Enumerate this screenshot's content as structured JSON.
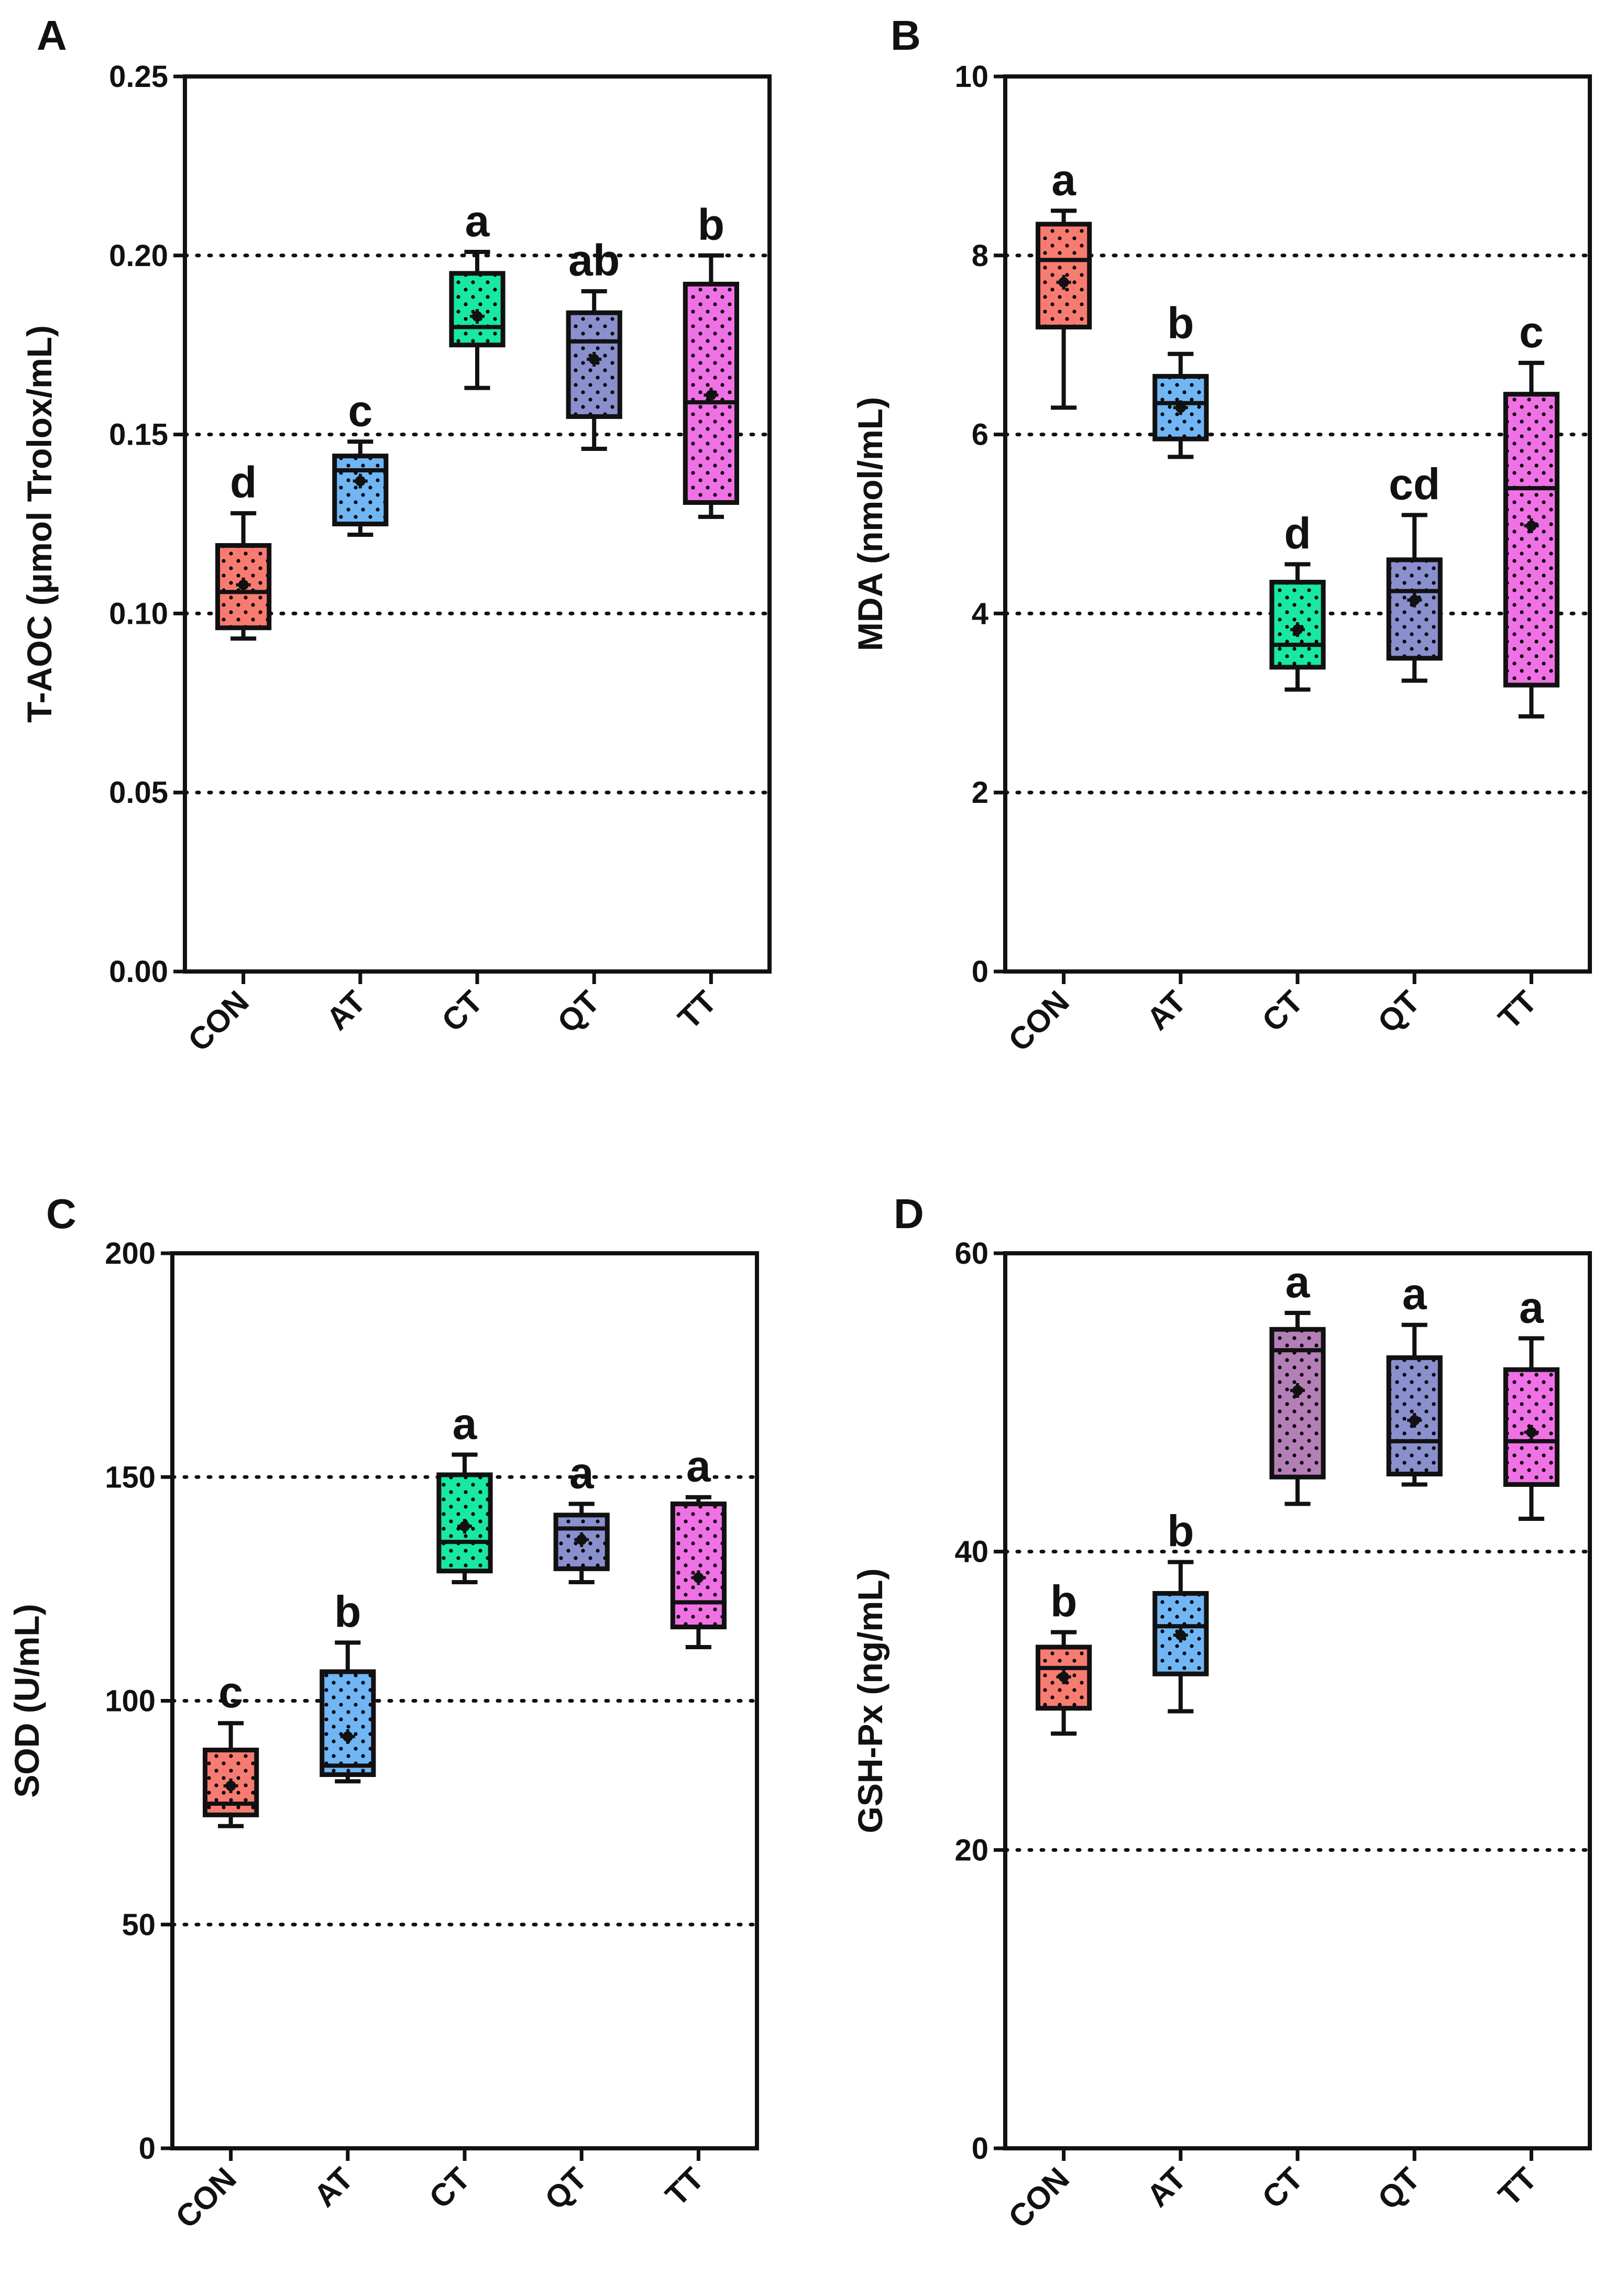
{
  "colors": {
    "CON": "#f87b72",
    "AT": "#71b6f4",
    "CT": "#18e8a2",
    "QT": "#8a8fcd",
    "TT": "#f071e5",
    "CT_D": "#b47fb6"
  },
  "chart_data": [
    {
      "type": "box",
      "panel": "A",
      "ylabel": "T-AOC (μmol Trolox/mL)",
      "ylim": [
        0,
        0.25
      ],
      "yticks": [
        0.0,
        0.05,
        0.1,
        0.15,
        0.2,
        0.25
      ],
      "ytick_labels": [
        "0.00",
        "0.05",
        "0.10",
        "0.15",
        "0.20",
        "0.25"
      ],
      "gridlines": [
        0.05,
        0.1,
        0.15,
        0.2
      ],
      "categories": [
        "CON",
        "AT",
        "CT",
        "QT",
        "TT"
      ],
      "boxes": [
        {
          "min": 0.093,
          "q1": 0.096,
          "median": 0.106,
          "q3": 0.119,
          "max": 0.128,
          "mean": 0.108,
          "letter": "d",
          "color_key": "CON"
        },
        {
          "min": 0.122,
          "q1": 0.125,
          "median": 0.14,
          "q3": 0.144,
          "max": 0.148,
          "mean": 0.137,
          "letter": "c",
          "color_key": "AT"
        },
        {
          "min": 0.163,
          "q1": 0.175,
          "median": 0.18,
          "q3": 0.195,
          "max": 0.201,
          "mean": 0.183,
          "letter": "a",
          "color_key": "CT"
        },
        {
          "min": 0.146,
          "q1": 0.155,
          "median": 0.176,
          "q3": 0.184,
          "max": 0.19,
          "mean": 0.171,
          "letter": "ab",
          "color_key": "QT"
        },
        {
          "min": 0.127,
          "q1": 0.131,
          "median": 0.159,
          "q3": 0.192,
          "max": 0.2,
          "mean": 0.161,
          "letter": "b",
          "color_key": "TT"
        }
      ]
    },
    {
      "type": "box",
      "panel": "B",
      "ylabel": "MDA (nmol/mL)",
      "ylim": [
        0,
        10
      ],
      "yticks": [
        0,
        2,
        4,
        6,
        8,
        10
      ],
      "ytick_labels": [
        "0",
        "2",
        "4",
        "6",
        "8",
        "10"
      ],
      "gridlines": [
        2,
        4,
        6,
        8
      ],
      "categories": [
        "CON",
        "AT",
        "CT",
        "QT",
        "TT"
      ],
      "boxes": [
        {
          "min": 6.3,
          "q1": 7.2,
          "median": 7.95,
          "q3": 8.35,
          "max": 8.5,
          "mean": 7.7,
          "letter": "a",
          "color_key": "CON"
        },
        {
          "min": 5.75,
          "q1": 5.95,
          "median": 6.35,
          "q3": 6.65,
          "max": 6.9,
          "mean": 6.3,
          "letter": "b",
          "color_key": "AT"
        },
        {
          "min": 3.15,
          "q1": 3.4,
          "median": 3.65,
          "q3": 4.35,
          "max": 4.55,
          "mean": 3.82,
          "letter": "d",
          "color_key": "CT"
        },
        {
          "min": 3.25,
          "q1": 3.5,
          "median": 4.25,
          "q3": 4.6,
          "max": 5.1,
          "mean": 4.15,
          "letter": "cd",
          "color_key": "QT"
        },
        {
          "min": 2.85,
          "q1": 3.2,
          "median": 5.4,
          "q3": 6.45,
          "max": 6.8,
          "mean": 4.98,
          "letter": "c",
          "color_key": "TT"
        }
      ]
    },
    {
      "type": "box",
      "panel": "C",
      "ylabel": "SOD (U/mL)",
      "ylim": [
        0,
        200
      ],
      "yticks": [
        0,
        50,
        100,
        150,
        200
      ],
      "ytick_labels": [
        "0",
        "50",
        "100",
        "150",
        "200"
      ],
      "gridlines": [
        50,
        100,
        150
      ],
      "categories": [
        "CON",
        "AT",
        "CT",
        "QT",
        "TT"
      ],
      "boxes": [
        {
          "min": 72,
          "q1": 74.5,
          "median": 77,
          "q3": 89,
          "max": 95,
          "mean": 81,
          "letter": "c",
          "color_key": "CON"
        },
        {
          "min": 82,
          "q1": 83.5,
          "median": 85.5,
          "q3": 106.5,
          "max": 113,
          "mean": 92,
          "letter": "b",
          "color_key": "AT"
        },
        {
          "min": 126.5,
          "q1": 129,
          "median": 135.5,
          "q3": 150.5,
          "max": 155,
          "mean": 139,
          "letter": "a",
          "color_key": "CT"
        },
        {
          "min": 126.5,
          "q1": 129.5,
          "median": 138.5,
          "q3": 141.5,
          "max": 144,
          "mean": 136,
          "letter": "a",
          "color_key": "QT"
        },
        {
          "min": 112,
          "q1": 116.5,
          "median": 122,
          "q3": 144,
          "max": 145.5,
          "mean": 127.5,
          "letter": "a",
          "color_key": "TT"
        }
      ]
    },
    {
      "type": "box",
      "panel": "D",
      "ylabel": "GSH-Px (ng/mL)",
      "ylim": [
        0,
        60
      ],
      "yticks": [
        0,
        20,
        40,
        60
      ],
      "ytick_labels": [
        "0",
        "20",
        "40",
        "60"
      ],
      "gridlines": [
        20,
        40
      ],
      "categories": [
        "CON",
        "AT",
        "CT",
        "QT",
        "TT"
      ],
      "boxes": [
        {
          "min": 27.8,
          "q1": 29.5,
          "median": 32.2,
          "q3": 33.6,
          "max": 34.6,
          "mean": 31.6,
          "letter": "b",
          "color_key": "CON"
        },
        {
          "min": 29.3,
          "q1": 31.8,
          "median": 35.0,
          "q3": 37.2,
          "max": 39.3,
          "mean": 34.4,
          "letter": "b",
          "color_key": "AT"
        },
        {
          "min": 43.2,
          "q1": 45.0,
          "median": 53.5,
          "q3": 54.9,
          "max": 56.0,
          "mean": 50.8,
          "letter": "a",
          "color_key": "CT_D"
        },
        {
          "min": 44.5,
          "q1": 45.2,
          "median": 47.4,
          "q3": 53.0,
          "max": 55.2,
          "mean": 48.8,
          "letter": "a",
          "color_key": "QT"
        },
        {
          "min": 42.2,
          "q1": 44.5,
          "median": 47.4,
          "q3": 52.2,
          "max": 54.3,
          "mean": 48.0,
          "letter": "a",
          "color_key": "TT"
        }
      ]
    }
  ]
}
